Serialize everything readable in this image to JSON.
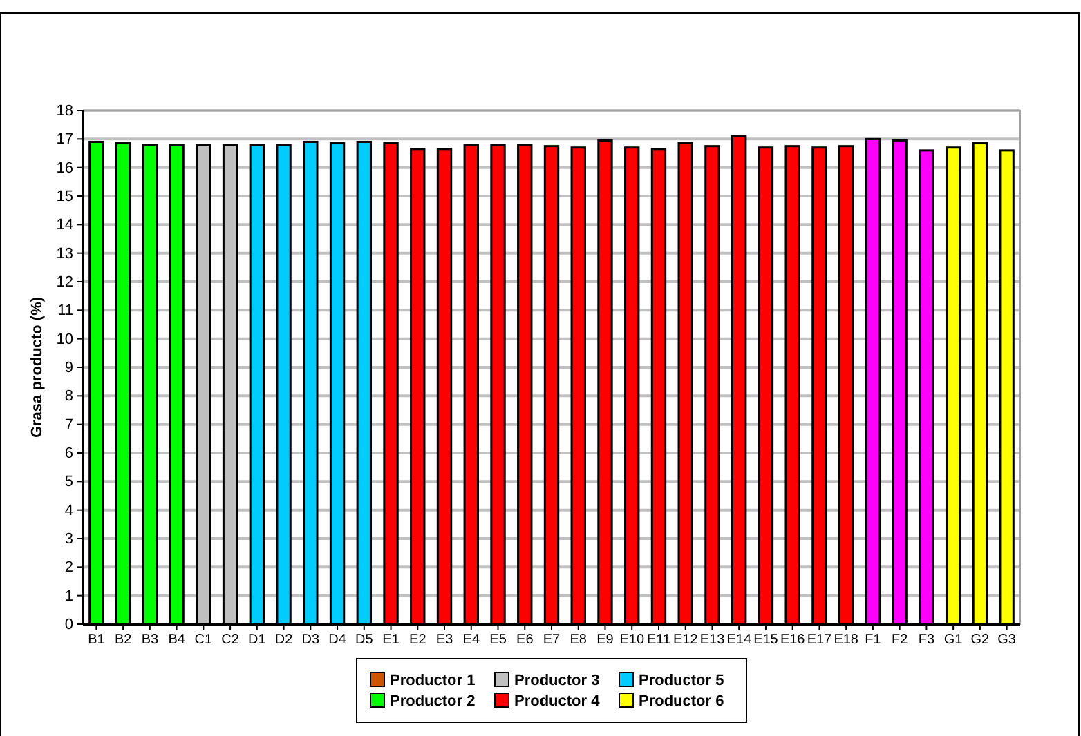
{
  "chart_data": {
    "type": "bar",
    "ylabel": "Grasa producto (%)",
    "categories": [
      "B1",
      "B2",
      "B3",
      "B4",
      "C1",
      "C2",
      "D1",
      "D2",
      "D3",
      "D4",
      "D5",
      "E1",
      "E2",
      "E3",
      "E4",
      "E5",
      "E6",
      "E7",
      "E8",
      "E9",
      "E10",
      "E11",
      "E12",
      "E13",
      "E14",
      "E15",
      "E16",
      "E17",
      "E18",
      "F1",
      "F2",
      "F3",
      "G1",
      "G2",
      "G3"
    ],
    "series": [
      {
        "name": "Productor 1",
        "color": "#cc5500",
        "values": [
          null,
          null,
          null,
          null,
          null,
          null,
          null,
          null,
          null,
          null,
          null,
          null,
          null,
          null,
          null,
          null,
          null,
          null,
          null,
          null,
          null,
          null,
          null,
          null,
          null,
          null,
          null,
          null,
          null,
          null,
          null,
          null,
          null,
          null,
          null
        ]
      },
      {
        "name": "Productor 2",
        "color": "#00ff00",
        "values": [
          16.9,
          16.85,
          16.8,
          16.8,
          null,
          null,
          null,
          null,
          null,
          null,
          null,
          null,
          null,
          null,
          null,
          null,
          null,
          null,
          null,
          null,
          null,
          null,
          null,
          null,
          null,
          null,
          null,
          null,
          null,
          null,
          null,
          null,
          null,
          null,
          null
        ]
      },
      {
        "name": "Productor 3",
        "color": "#c0c0c0",
        "values": [
          null,
          null,
          null,
          null,
          16.8,
          16.8,
          null,
          null,
          null,
          null,
          null,
          null,
          null,
          null,
          null,
          null,
          null,
          null,
          null,
          null,
          null,
          null,
          null,
          null,
          null,
          null,
          null,
          null,
          null,
          null,
          null,
          null,
          null,
          null,
          null
        ]
      },
      {
        "name": "Productor 4",
        "color": "#ff0000",
        "values": [
          null,
          null,
          null,
          null,
          null,
          null,
          null,
          null,
          null,
          null,
          null,
          16.85,
          16.65,
          16.65,
          16.8,
          16.8,
          16.8,
          16.75,
          16.7,
          16.95,
          16.7,
          16.65,
          16.85,
          16.75,
          17.1,
          16.7,
          16.75,
          16.7,
          16.75,
          null,
          null,
          null,
          null,
          null,
          null
        ]
      },
      {
        "name": "Productor 5",
        "color": "#00ccff",
        "values": [
          null,
          null,
          null,
          null,
          null,
          null,
          16.8,
          16.8,
          16.9,
          16.85,
          16.9,
          null,
          null,
          null,
          null,
          null,
          null,
          null,
          null,
          null,
          null,
          null,
          null,
          null,
          null,
          null,
          null,
          null,
          null,
          null,
          null,
          null,
          null,
          null,
          null
        ]
      },
      {
        "name": "Productor 6",
        "color": "#ffff00",
        "values": [
          null,
          null,
          null,
          null,
          null,
          null,
          null,
          null,
          null,
          null,
          null,
          null,
          null,
          null,
          null,
          null,
          null,
          null,
          null,
          null,
          null,
          null,
          null,
          null,
          null,
          null,
          null,
          null,
          null,
          null,
          null,
          null,
          16.7,
          16.85,
          16.6
        ]
      },
      {
        "color": "#ff00ff",
        "values": [
          null,
          null,
          null,
          null,
          null,
          null,
          null,
          null,
          null,
          null,
          null,
          null,
          null,
          null,
          null,
          null,
          null,
          null,
          null,
          null,
          null,
          null,
          null,
          null,
          null,
          null,
          null,
          null,
          null,
          17.0,
          16.95,
          16.6,
          null,
          null,
          null
        ]
      }
    ],
    "ylim": [
      0,
      18
    ],
    "yticks": [
      0,
      1,
      2,
      3,
      4,
      5,
      6,
      7,
      8,
      9,
      10,
      11,
      12,
      13,
      14,
      15,
      16,
      17,
      18
    ],
    "grid": "y",
    "legend": "bottom"
  }
}
